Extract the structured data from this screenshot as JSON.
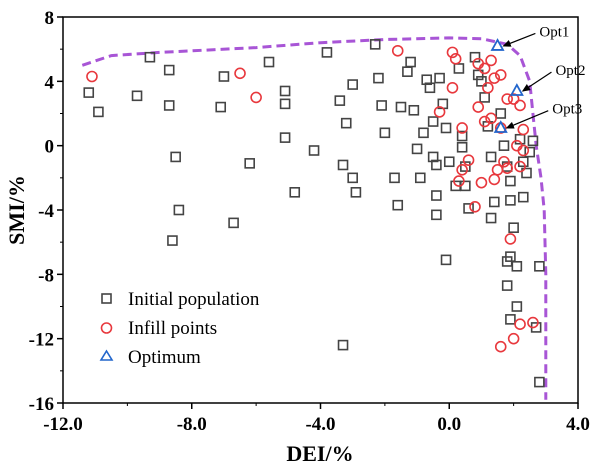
{
  "chart_data": {
    "type": "scatter",
    "xlabel": "DEI/%",
    "ylabel": "SMI/%",
    "xlim": [
      -12.0,
      4.0
    ],
    "ylim": [
      -16,
      8
    ],
    "x_ticks": [
      -12.0,
      -8.0,
      -4.0,
      0.0,
      4.0
    ],
    "x_tick_labels": [
      "-12.0",
      "-8.0",
      "-4.0",
      "0.0",
      "4.0"
    ],
    "y_ticks": [
      -16,
      -12,
      -8,
      -4,
      0,
      4,
      8
    ],
    "y_tick_labels": [
      "-16",
      "-12",
      "-8",
      "-4",
      "0",
      "4",
      "8"
    ],
    "grid": false,
    "legend": {
      "position": "bottom-left",
      "entries": [
        {
          "label": "Initial population",
          "marker": "square",
          "color": "#444444"
        },
        {
          "label": "Infill points",
          "marker": "circle",
          "color": "#e8383d"
        },
        {
          "label": "Optimum",
          "marker": "triangle",
          "color": "#2266cc"
        }
      ]
    },
    "series": [
      {
        "name": "Initial population",
        "marker": "square",
        "color": "#444444",
        "points": [
          [
            -11.2,
            3.3
          ],
          [
            -10.9,
            2.1
          ],
          [
            -9.3,
            5.5
          ],
          [
            -9.7,
            3.1
          ],
          [
            -8.7,
            4.7
          ],
          [
            -8.7,
            2.5
          ],
          [
            -8.5,
            -0.7
          ],
          [
            -8.4,
            -4.0
          ],
          [
            -8.6,
            -5.9
          ],
          [
            -7.0,
            4.3
          ],
          [
            -7.1,
            2.4
          ],
          [
            -6.7,
            -4.8
          ],
          [
            -6.2,
            -1.1
          ],
          [
            -5.6,
            5.2
          ],
          [
            -5.1,
            3.4
          ],
          [
            -5.1,
            2.6
          ],
          [
            -5.1,
            0.5
          ],
          [
            -4.8,
            -2.9
          ],
          [
            -4.2,
            -0.3
          ],
          [
            -3.8,
            5.8
          ],
          [
            -3.4,
            2.8
          ],
          [
            -3.2,
            1.4
          ],
          [
            -3.3,
            -1.2
          ],
          [
            -3.0,
            3.8
          ],
          [
            -3.0,
            -2.0
          ],
          [
            -2.9,
            -2.9
          ],
          [
            -2.3,
            6.3
          ],
          [
            -2.2,
            4.2
          ],
          [
            -2.1,
            2.5
          ],
          [
            -2.0,
            0.8
          ],
          [
            -1.7,
            -2.0
          ],
          [
            -1.6,
            -3.7
          ],
          [
            -1.5,
            2.4
          ],
          [
            -1.3,
            4.6
          ],
          [
            -1.2,
            5.2
          ],
          [
            -1.1,
            2.2
          ],
          [
            -1.0,
            -0.2
          ],
          [
            -0.9,
            -2.0
          ],
          [
            -0.8,
            0.8
          ],
          [
            -0.7,
            4.1
          ],
          [
            -0.6,
            3.6
          ],
          [
            -0.5,
            1.5
          ],
          [
            -0.5,
            -0.7
          ],
          [
            -0.4,
            -1.2
          ],
          [
            -0.4,
            -3.1
          ],
          [
            -0.4,
            -4.3
          ],
          [
            -0.3,
            4.2
          ],
          [
            -0.2,
            2.6
          ],
          [
            -0.1,
            1.1
          ],
          [
            0.0,
            -1.0
          ],
          [
            -0.1,
            -7.1
          ],
          [
            0.2,
            -2.5
          ],
          [
            0.3,
            4.8
          ],
          [
            0.4,
            0.6
          ],
          [
            0.4,
            -0.1
          ],
          [
            0.5,
            -1.3
          ],
          [
            0.5,
            -2.5
          ],
          [
            0.6,
            -3.9
          ],
          [
            0.8,
            5.5
          ],
          [
            0.9,
            4.4
          ],
          [
            1.1,
            3.0
          ],
          [
            1.2,
            1.2
          ],
          [
            1.3,
            -0.7
          ],
          [
            1.4,
            -3.5
          ],
          [
            1.3,
            -4.5
          ],
          [
            1.6,
            2.0
          ],
          [
            1.7,
            0.0
          ],
          [
            1.8,
            -1.3
          ],
          [
            1.9,
            -2.2
          ],
          [
            1.9,
            -3.4
          ],
          [
            2.0,
            -5.1
          ],
          [
            1.9,
            -6.9
          ],
          [
            1.8,
            -7.2
          ],
          [
            2.1,
            -7.5
          ],
          [
            1.8,
            -8.7
          ],
          [
            2.1,
            -10.0
          ],
          [
            1.9,
            -10.8
          ],
          [
            2.2,
            0.4
          ],
          [
            2.3,
            -1.0
          ],
          [
            2.4,
            -1.7
          ],
          [
            2.3,
            -3.2
          ],
          [
            2.5,
            -0.4
          ],
          [
            2.6,
            0.3
          ],
          [
            2.7,
            -11.3
          ],
          [
            2.8,
            -7.5
          ],
          [
            2.8,
            -14.7
          ],
          [
            -3.3,
            -12.4
          ],
          [
            1.0,
            4.0
          ]
        ]
      },
      {
        "name": "Infill points",
        "marker": "circle",
        "color": "#e8383d",
        "points": [
          [
            -11.1,
            4.3
          ],
          [
            -6.5,
            4.5
          ],
          [
            -6.0,
            3.0
          ],
          [
            -1.6,
            5.9
          ],
          [
            0.1,
            5.8
          ],
          [
            0.2,
            5.4
          ],
          [
            -0.3,
            2.1
          ],
          [
            0.4,
            1.1
          ],
          [
            0.4,
            -1.5
          ],
          [
            0.6,
            -0.9
          ],
          [
            0.3,
            -2.2
          ],
          [
            0.9,
            5.1
          ],
          [
            1.1,
            4.8
          ],
          [
            1.3,
            5.3
          ],
          [
            1.4,
            4.2
          ],
          [
            1.6,
            4.4
          ],
          [
            1.2,
            3.6
          ],
          [
            0.9,
            2.4
          ],
          [
            1.3,
            1.7
          ],
          [
            1.6,
            1.1
          ],
          [
            1.8,
            2.9
          ],
          [
            2.0,
            2.9
          ],
          [
            2.2,
            2.5
          ],
          [
            2.3,
            1.0
          ],
          [
            2.1,
            0.0
          ],
          [
            2.3,
            -0.3
          ],
          [
            2.2,
            -1.3
          ],
          [
            1.7,
            -1.0
          ],
          [
            1.5,
            -1.5
          ],
          [
            1.8,
            -1.4
          ],
          [
            1.4,
            -2.1
          ],
          [
            1.0,
            -2.3
          ],
          [
            0.8,
            -3.8
          ],
          [
            1.9,
            -5.8
          ],
          [
            2.2,
            -11.1
          ],
          [
            2.6,
            -11.0
          ],
          [
            2.0,
            -12.0
          ],
          [
            1.6,
            -12.5
          ],
          [
            1.1,
            1.5
          ],
          [
            0.1,
            3.6
          ]
        ]
      },
      {
        "name": "Optimum",
        "marker": "triangle",
        "color": "#2266cc",
        "points": [
          [
            1.5,
            6.2
          ],
          [
            2.1,
            3.4
          ],
          [
            1.6,
            1.1
          ]
        ]
      }
    ],
    "pareto_front": {
      "style": "dashed",
      "color": "#a855d6",
      "points": [
        [
          -11.4,
          5.0
        ],
        [
          -10.5,
          5.6
        ],
        [
          -9.0,
          5.8
        ],
        [
          -8.0,
          5.9
        ],
        [
          -6.0,
          6.1
        ],
        [
          -4.0,
          6.4
        ],
        [
          -2.0,
          6.6
        ],
        [
          0.0,
          6.7
        ],
        [
          1.0,
          6.65
        ],
        [
          1.8,
          6.3
        ],
        [
          2.2,
          5.6
        ],
        [
          2.5,
          4.0
        ],
        [
          2.6,
          2.0
        ],
        [
          2.7,
          0.0
        ],
        [
          2.85,
          -2.0
        ],
        [
          2.95,
          -4.0
        ],
        [
          3.0,
          -8.0
        ],
        [
          3.0,
          -12.0
        ],
        [
          3.0,
          -15.8
        ]
      ]
    },
    "annotations": [
      {
        "text": "Opt1",
        "target": [
          1.5,
          6.2
        ],
        "label_at": [
          2.8,
          7.1
        ]
      },
      {
        "text": "Opt2",
        "target": [
          2.1,
          3.4
        ],
        "label_at": [
          3.3,
          4.7
        ]
      },
      {
        "text": "Opt3",
        "target": [
          1.6,
          1.1
        ],
        "label_at": [
          3.2,
          2.3
        ]
      }
    ]
  }
}
